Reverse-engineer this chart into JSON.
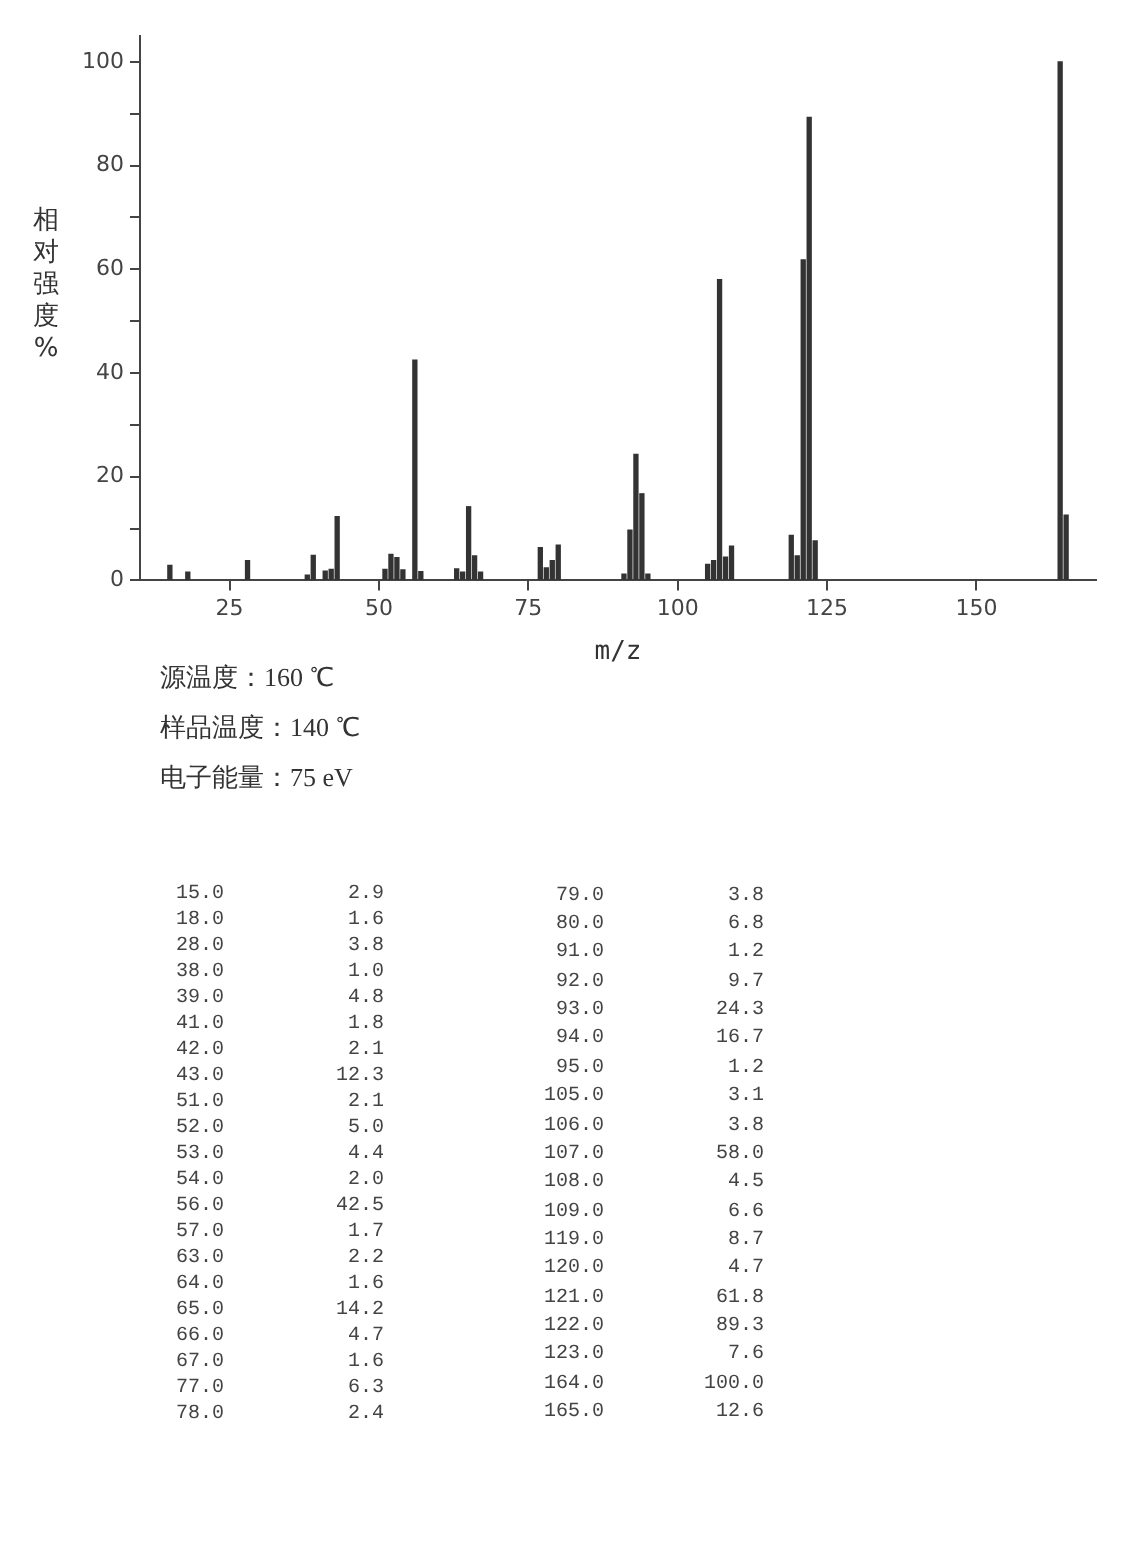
{
  "chart_data": [
    {
      "type": "bar",
      "xlabel": "m/z",
      "ylabel": "相对强度%",
      "x": [
        15,
        18,
        28,
        38,
        39,
        41,
        42,
        43,
        51,
        52,
        53,
        54,
        56,
        57,
        63,
        64,
        65,
        66,
        67,
        77,
        78,
        79,
        80,
        91,
        92,
        93,
        94,
        95,
        105,
        106,
        107,
        108,
        109,
        119,
        120,
        121,
        122,
        123,
        164,
        165
      ],
      "values": [
        2.9,
        1.6,
        3.8,
        1.0,
        4.8,
        1.8,
        2.1,
        12.3,
        2.1,
        5.0,
        4.4,
        2.0,
        42.5,
        1.7,
        2.2,
        1.6,
        14.2,
        4.7,
        1.6,
        6.3,
        2.4,
        3.8,
        6.8,
        1.2,
        9.7,
        24.3,
        16.7,
        1.2,
        3.1,
        3.8,
        58.0,
        4.5,
        6.6,
        8.7,
        4.7,
        61.8,
        89.3,
        7.6,
        100.0,
        12.6
      ],
      "color": "#333333",
      "xlim": [
        10,
        170
      ],
      "xticks": [
        25,
        50,
        75,
        100,
        125,
        150
      ],
      "ylim": [
        0,
        105
      ],
      "yticks": [
        0,
        {
          "value": 10,
          "label": null
        },
        20,
        {
          "value": 30,
          "label": null
        },
        40,
        {
          "value": 50,
          "label": null
        },
        60,
        {
          "value": 70,
          "label": null
        },
        80,
        {
          "value": 90,
          "label": null
        },
        100
      ],
      "grid": false,
      "legend": false,
      "annotations": [
        "源温度：160 ℃",
        "样品温度：140 ℃",
        "电子能量：75 eV"
      ]
    },
    {
      "type": "other",
      "annotations": [
        "15.0",
        "2.9",
        "18.0",
        "1.6",
        "28.0",
        "3.8",
        "38.0",
        "1.0",
        "39.0",
        "4.8",
        "41.0",
        "1.8",
        "42.0",
        "2.1",
        "43.0",
        "12.3",
        "51.0",
        "2.1",
        "52.0",
        "5.0",
        "53.0",
        "4.4",
        "54.0",
        "2.0",
        "56.0",
        "42.5",
        "57.0",
        "1.7",
        "63.0",
        "2.2",
        "64.0",
        "1.6",
        "65.0",
        "14.2",
        "66.0",
        "4.7",
        "67.0",
        "1.6",
        "77.0",
        "6.3",
        "78.0",
        "2.4",
        "79.0",
        "3.8",
        "80.0",
        "6.8",
        "91.0",
        "1.2",
        "92.0",
        "9.7",
        "93.0",
        "24.3",
        "94.0",
        "16.7",
        "95.0",
        "1.2",
        "105.0",
        "3.1",
        "106.0",
        "3.8",
        "107.0",
        "58.0",
        "108.0",
        "4.5",
        "109.0",
        "6.6",
        "119.0",
        "8.7",
        "120.0",
        "4.7",
        "121.0",
        "61.8",
        "122.0",
        "89.3",
        "123.0",
        "7.6",
        "164.0",
        "100.0",
        "165.0",
        "12.6"
      ]
    }
  ]
}
